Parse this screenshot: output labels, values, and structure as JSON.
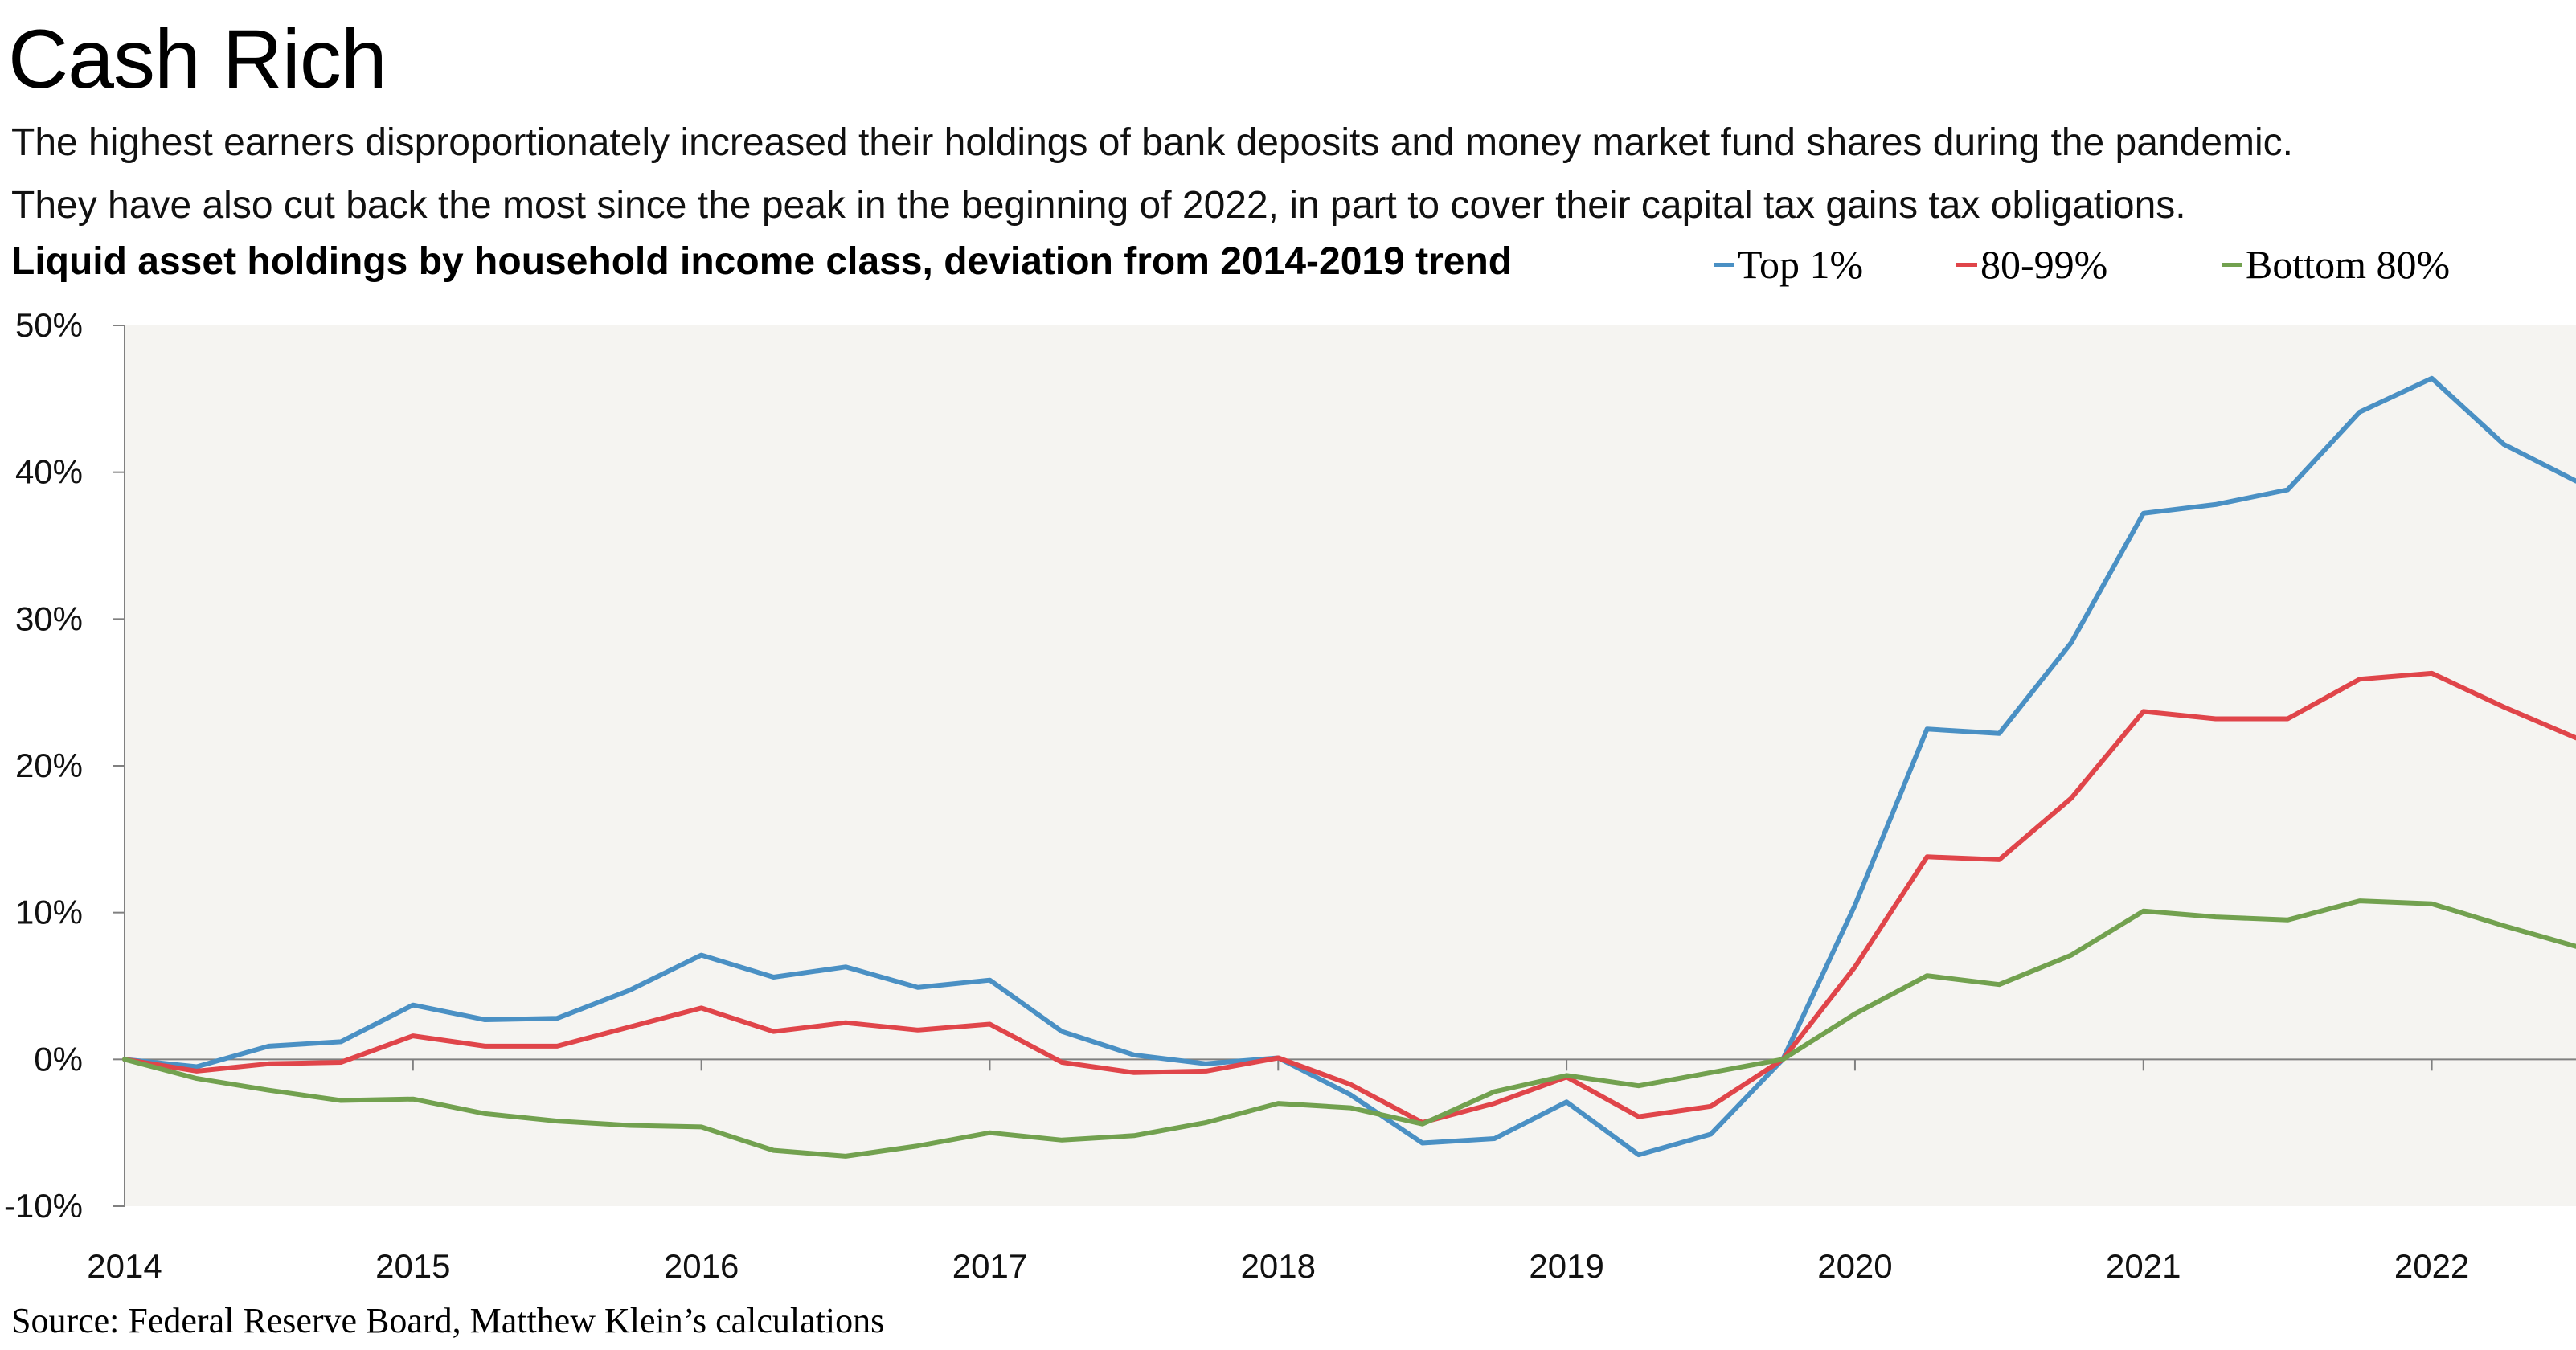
{
  "title": "Cash Rich",
  "subtitle_lines": [
    "The highest earners disproportionately increased their holdings of bank deposits and money market fund shares during the pandemic.",
    "They have also cut back the most since the peak in the beginning of 2022, in part to cover their capital tax gains tax obligations."
  ],
  "source": "Source: Federal Reserve Board, Matthew Klein’s calculations",
  "colors": {
    "top1": "#4a90c4",
    "p80_99": "#e0454a",
    "bottom80": "#72a14f",
    "plot_bg": "#f5f4f1",
    "axis": "#808080"
  },
  "chart_data": {
    "type": "line",
    "title": "Liquid asset holdings by household income class, deviation from 2014-2019 trend",
    "xlabel": "",
    "ylabel": "",
    "xlim": [
      2014.0,
      2022.5
    ],
    "ylim": [
      -10,
      50
    ],
    "y_ticks": [
      -10,
      0,
      10,
      20,
      30,
      40,
      50
    ],
    "y_tick_labels": [
      "-10%",
      "0%",
      "10%",
      "20%",
      "30%",
      "40%",
      "50%"
    ],
    "x_ticks": [
      2014,
      2015,
      2016,
      2017,
      2018,
      2019,
      2020,
      2021,
      2022
    ],
    "x_tick_labels": [
      "2014",
      "2015",
      "2016",
      "2017",
      "2018",
      "2019",
      "2020",
      "2021",
      "2022"
    ],
    "grid": false,
    "legend_position": "top-right",
    "x": [
      2014.0,
      2014.25,
      2014.5,
      2014.75,
      2015.0,
      2015.25,
      2015.5,
      2015.75,
      2016.0,
      2016.25,
      2016.5,
      2016.75,
      2017.0,
      2017.25,
      2017.5,
      2017.75,
      2018.0,
      2018.25,
      2018.5,
      2018.75,
      2019.0,
      2019.25,
      2019.5,
      2019.75,
      2020.0,
      2020.25,
      2020.5,
      2020.75,
      2021.0,
      2021.25,
      2021.5,
      2021.75,
      2022.0,
      2022.25,
      2022.5
    ],
    "series": [
      {
        "name": "Top 1%",
        "color_key": "top1",
        "values": [
          0,
          -0.5,
          0.9,
          1.2,
          3.7,
          2.7,
          2.8,
          4.7,
          7.1,
          5.6,
          6.3,
          4.9,
          5.4,
          1.9,
          0.3,
          -0.3,
          0.1,
          -2.4,
          -5.7,
          -5.4,
          -2.9,
          -6.5,
          -5.1,
          0,
          10.5,
          22.5,
          22.2,
          28.4,
          37.2,
          37.8,
          38.8,
          44.1,
          46.4,
          41.9,
          39.4
        ]
      },
      {
        "name": "80-99%",
        "color_key": "p80_99",
        "values": [
          0,
          -0.8,
          -0.3,
          -0.2,
          1.6,
          0.9,
          0.9,
          2.2,
          3.5,
          1.9,
          2.5,
          2.0,
          2.4,
          -0.2,
          -0.9,
          -0.8,
          0.1,
          -1.7,
          -4.3,
          -3.0,
          -1.2,
          -3.9,
          -3.2,
          0,
          6.3,
          13.8,
          13.6,
          17.8,
          23.7,
          23.2,
          23.2,
          25.9,
          26.3,
          24.0,
          21.9
        ]
      },
      {
        "name": "Bottom 80%",
        "color_key": "bottom80",
        "values": [
          0,
          -1.3,
          -2.1,
          -2.8,
          -2.7,
          -3.7,
          -4.2,
          -4.5,
          -4.6,
          -6.2,
          -6.6,
          -5.9,
          -5.0,
          -5.5,
          -5.2,
          -4.3,
          -3.0,
          -3.3,
          -4.4,
          -2.2,
          -1.1,
          -1.8,
          -0.9,
          0,
          3.1,
          5.7,
          5.1,
          7.1,
          10.1,
          9.7,
          9.5,
          10.8,
          10.6,
          9.1,
          7.7
        ]
      }
    ]
  }
}
